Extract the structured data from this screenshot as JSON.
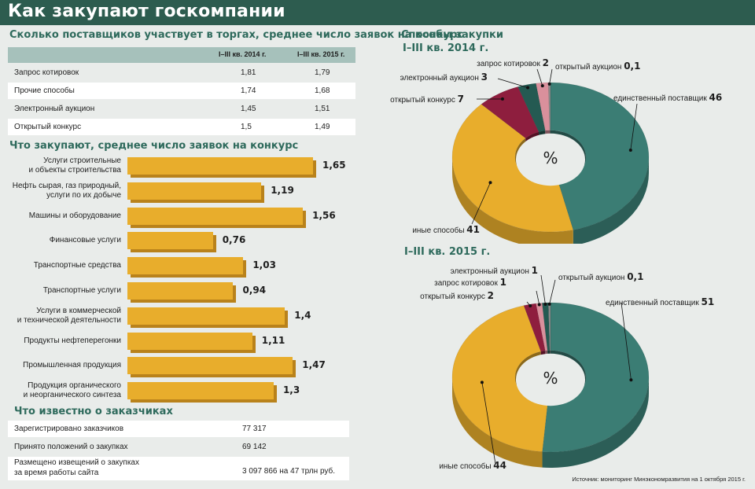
{
  "title": "Как закупают госкомпании",
  "suppliers": {
    "title": "Сколько поставщиков участвует в торгах, среднее число заявок на конкурс",
    "col1": "I–III кв. 2014 г.",
    "col2": "I–III кв. 2015 г.",
    "rows": [
      {
        "label": "Запрос котировок",
        "v2014": "1,81",
        "v2015": "1,79"
      },
      {
        "label": "Прочие способы",
        "v2014": "1,74",
        "v2015": "1,68"
      },
      {
        "label": "Электронный аукцион",
        "v2014": "1,45",
        "v2015": "1,51"
      },
      {
        "label": "Открытый конкурс",
        "v2014": "1,5",
        "v2015": "1,49"
      }
    ]
  },
  "purchases": {
    "title": "Что закупают, среднее число заявок на конкурс"
  },
  "customers": {
    "title": "Что известно о заказчиках",
    "rows": [
      {
        "label": "Зарегистрировано заказчиков",
        "value": "77 317"
      },
      {
        "label": "Принято положений о закупках",
        "value": "69 142"
      },
      {
        "label1": "Размещено извещений о закупках",
        "label2": "за время работы сайта",
        "value": "3 097 866 на 47 трлн руб."
      }
    ]
  },
  "methods": {
    "title": "Способы закупки",
    "pct": "%"
  },
  "source": "Источник: мониторинг Минэкономразвития на 1 октября 2015 г.",
  "colors": {
    "yellow": "#e8ad2c",
    "teal": "#3b7d74",
    "darkteal": "#245a52",
    "maroon": "#8e1e3e",
    "pink": "#d9909c",
    "grey": "#8a8a8a",
    "header": "#2d5c4f"
  },
  "chart_data": [
    {
      "type": "bar",
      "title": "Что закупают, среднее число заявок на конкурс",
      "orientation": "horizontal",
      "categories": [
        [
          "Услуги строительные",
          "и объекты строительства"
        ],
        [
          "Нефть сырая, газ природный,",
          "услуги по их добыче"
        ],
        [
          "Машины и оборудование"
        ],
        [
          "Финансовые услуги"
        ],
        [
          "Транспортные средства"
        ],
        [
          "Транспортные услуги"
        ],
        [
          "Услуги в коммерческой",
          "и технической деятельности"
        ],
        [
          "Продукты нефтеперегонки"
        ],
        [
          "Промышленная продукция"
        ],
        [
          "Продукция органического",
          "и неорганического синтеза"
        ]
      ],
      "values": [
        1.65,
        1.19,
        1.56,
        0.76,
        1.03,
        0.94,
        1.4,
        1.11,
        1.47,
        1.3
      ],
      "value_labels": [
        "1,65",
        "1,19",
        "1,56",
        "0,76",
        "1,03",
        "0,94",
        "1,4",
        "1,11",
        "1,47",
        "1,3"
      ]
    },
    {
      "type": "pie",
      "title": "I–III кв. 2014 г.",
      "slices": [
        {
          "name": "единственный поставщик",
          "value": 46,
          "label": "46",
          "color": "#3b7d74"
        },
        {
          "name": "иные способы",
          "value": 41,
          "label": "41",
          "color": "#e8ad2c"
        },
        {
          "name": "открытый конкурс",
          "value": 7,
          "label": "7",
          "color": "#8e1e3e"
        },
        {
          "name": "электронный аукцион",
          "value": 3,
          "label": "3",
          "color": "#245a52"
        },
        {
          "name": "запрос котировок",
          "value": 2,
          "label": "2",
          "color": "#d9909c"
        },
        {
          "name": "открытый аукцион",
          "value": 0.1,
          "label": "0,1",
          "color": "#8a8a8a"
        }
      ]
    },
    {
      "type": "pie",
      "title": "I–III кв. 2015 г.",
      "slices": [
        {
          "name": "единственный поставщик",
          "value": 51,
          "label": "51",
          "color": "#3b7d74"
        },
        {
          "name": "иные способы",
          "value": 44,
          "label": "44",
          "color": "#e8ad2c"
        },
        {
          "name": "открытый конкурс",
          "value": 2,
          "label": "2",
          "color": "#8e1e3e"
        },
        {
          "name": "запрос котировок",
          "value": 1,
          "label": "1",
          "color": "#d9909c"
        },
        {
          "name": "электронный аукцион",
          "value": 1,
          "label": "1",
          "color": "#245a52"
        },
        {
          "name": "открытый аукцион",
          "value": 0.1,
          "label": "0,1",
          "color": "#8a8a8a"
        }
      ]
    }
  ]
}
